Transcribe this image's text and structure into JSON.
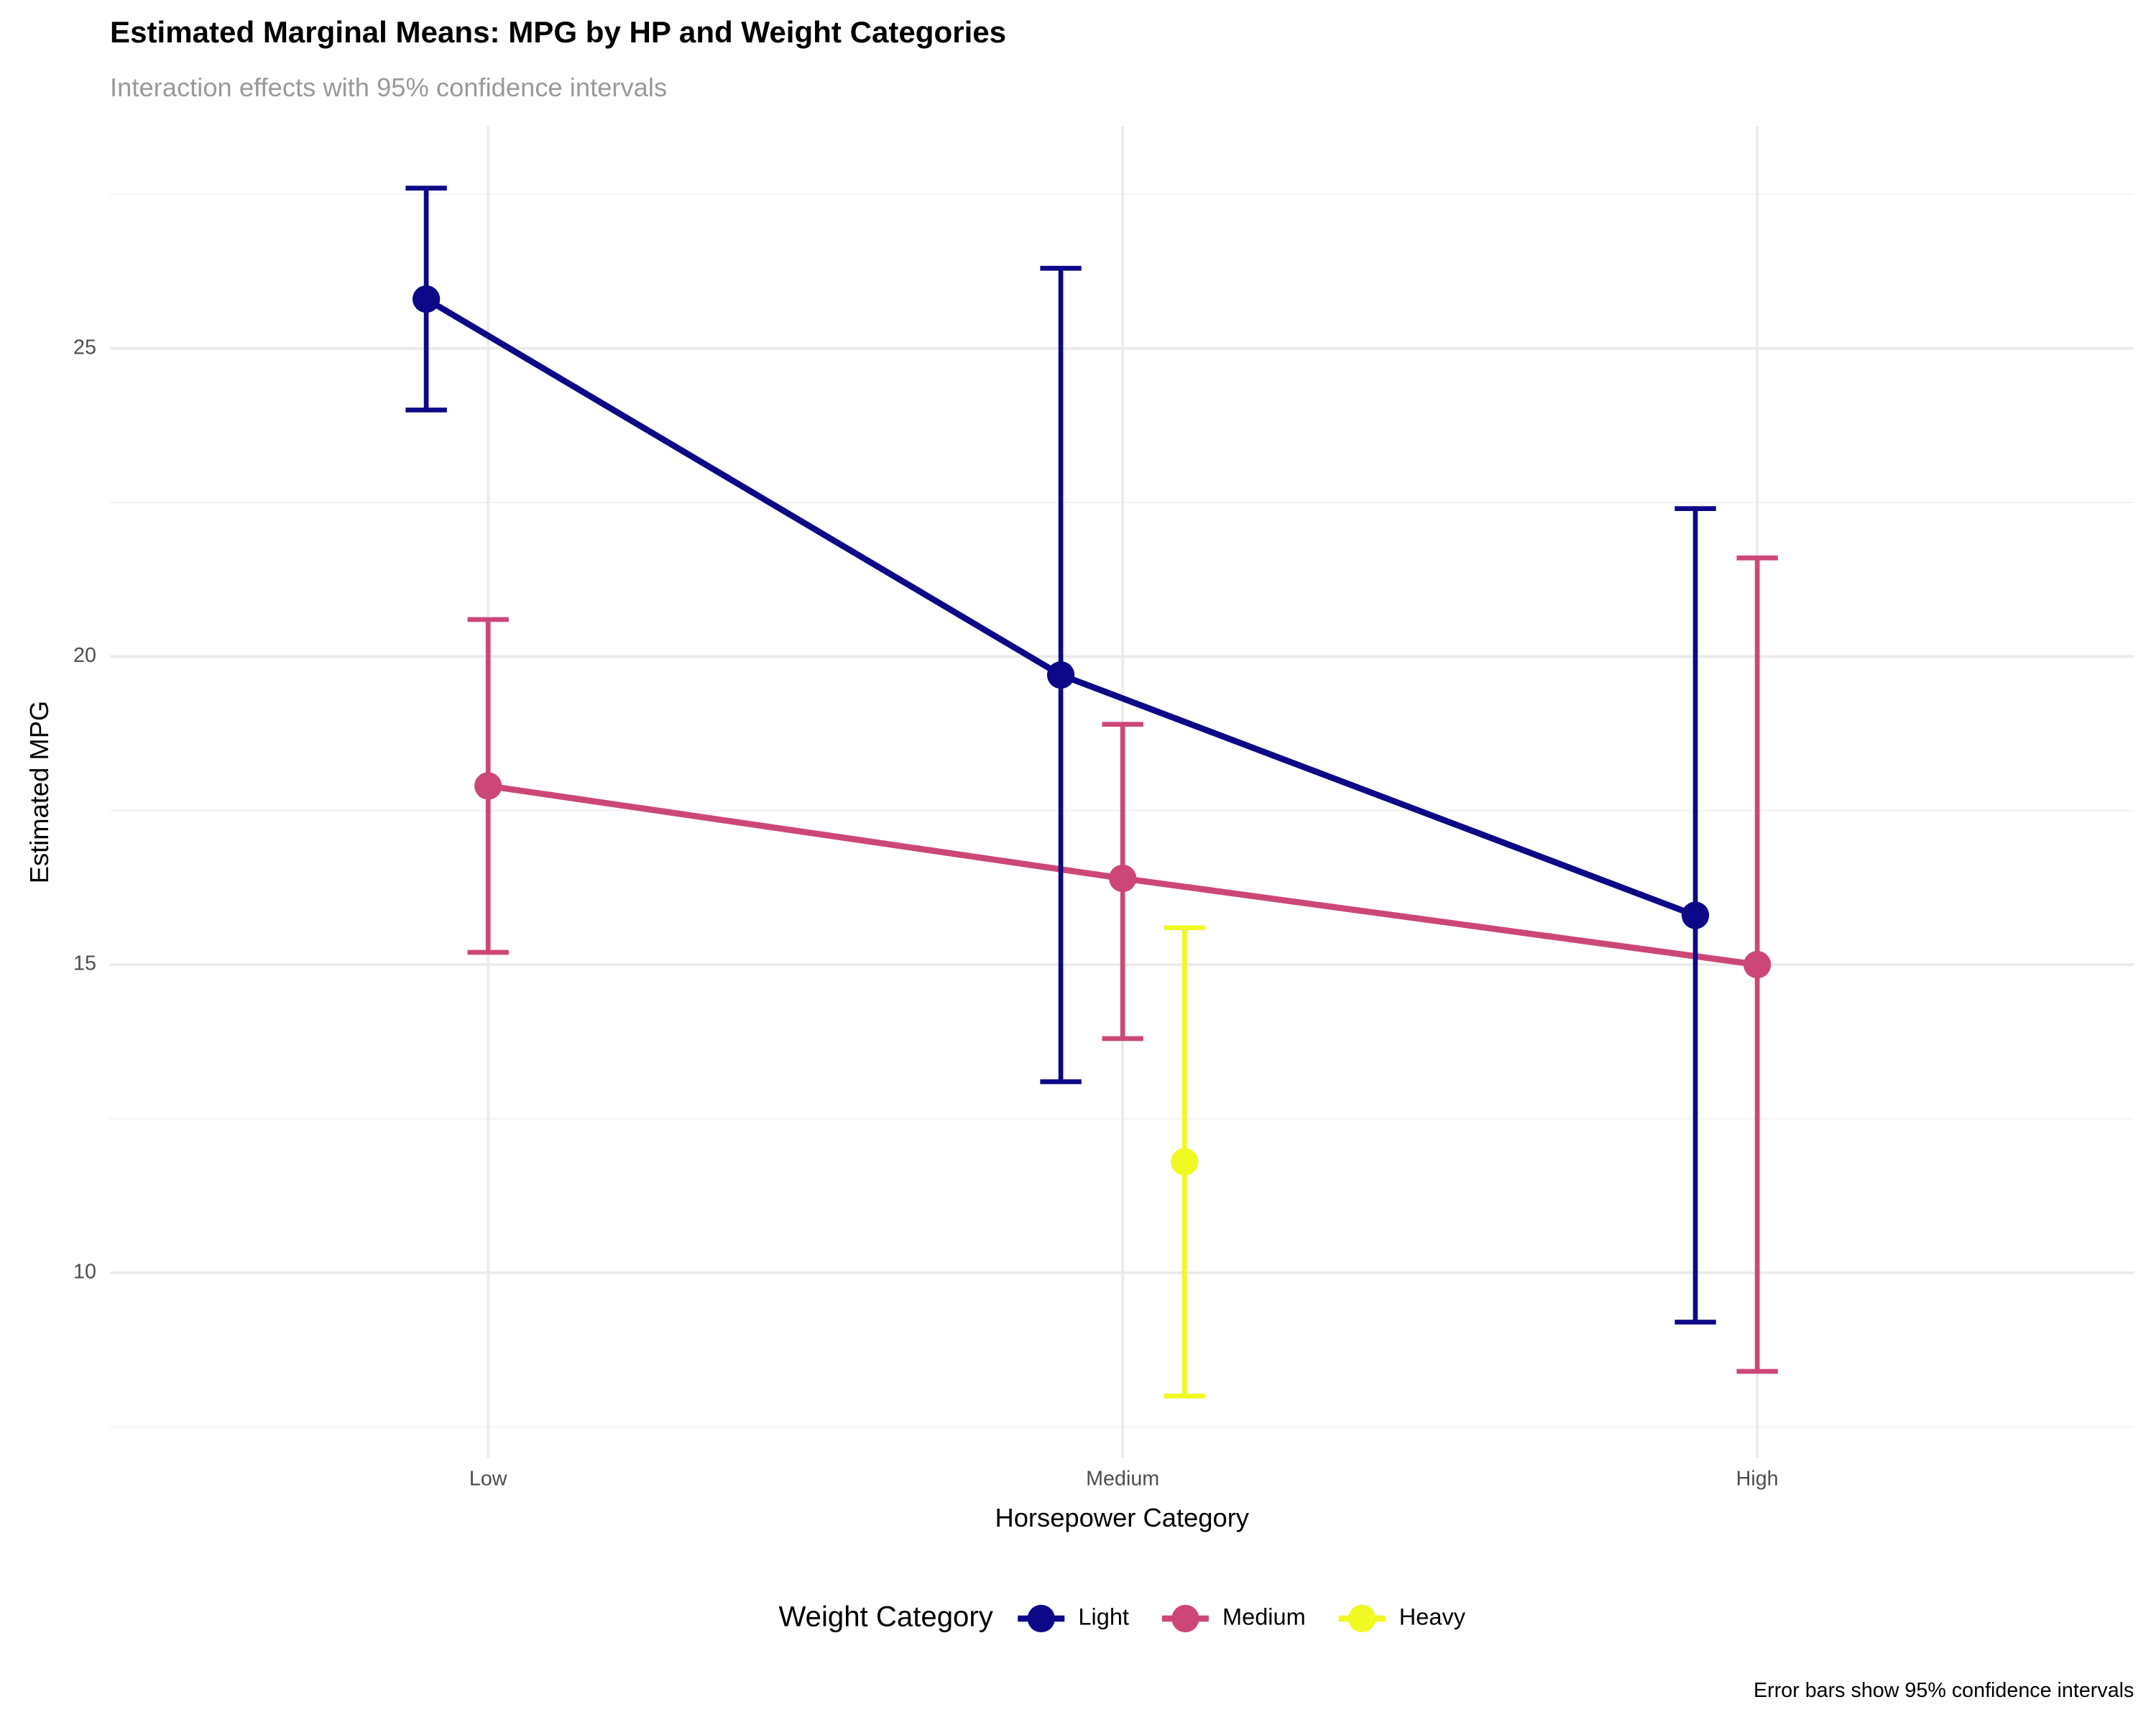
{
  "chart_data": {
    "type": "errorbar_line",
    "title": "Estimated Marginal Means: MPG by HP and Weight Categories",
    "subtitle": "Interaction effects with 95% confidence intervals",
    "x_label": "Horsepower Category",
    "y_label": "Estimated MPG",
    "caption": "Error bars show 95% confidence intervals",
    "legend_title": "Weight Category",
    "legend_position": "bottom",
    "grid": true,
    "categories": [
      "Low",
      "Medium",
      "High"
    ],
    "series": [
      {
        "name": "Light",
        "color": "#0d0887",
        "values": [
          25.8,
          19.7,
          15.8
        ],
        "lower": [
          24.0,
          13.1,
          9.2
        ],
        "upper": [
          27.6,
          26.3,
          22.4
        ]
      },
      {
        "name": "Medium",
        "color": "#cc4778",
        "values": [
          17.9,
          16.4,
          15.0
        ],
        "lower": [
          15.2,
          13.8,
          8.4
        ],
        "upper": [
          20.6,
          18.9,
          21.6
        ]
      },
      {
        "name": "Heavy",
        "color": "#f0f921",
        "values": [
          null,
          11.8,
          null
        ],
        "lower": [
          null,
          8.0,
          null
        ],
        "upper": [
          null,
          15.6,
          null
        ]
      }
    ],
    "ylim": [
      7,
      28.6
    ],
    "yticks": [
      10,
      15,
      20,
      25
    ]
  }
}
